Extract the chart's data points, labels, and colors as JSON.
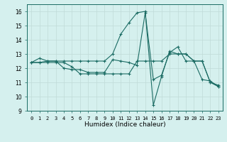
{
  "xlabel": "Humidex (Indice chaleur)",
  "ylabel": "",
  "background_color": "#d5f0ee",
  "grid_color": "#c0dbd8",
  "line_color": "#1a6b63",
  "xlim": [
    -0.5,
    23.5
  ],
  "ylim": [
    9,
    16.5
  ],
  "yticks": [
    9,
    10,
    11,
    12,
    13,
    14,
    15,
    16
  ],
  "xticks": [
    0,
    1,
    2,
    3,
    4,
    5,
    6,
    7,
    8,
    9,
    10,
    11,
    12,
    13,
    14,
    15,
    16,
    17,
    18,
    19,
    20,
    21,
    22,
    23
  ],
  "series": [
    [
      12.4,
      12.7,
      12.5,
      12.5,
      12.0,
      11.9,
      11.9,
      11.7,
      11.7,
      11.7,
      12.6,
      12.5,
      12.4,
      12.2,
      15.9,
      11.2,
      11.5,
      13.1,
      13.5,
      12.5,
      12.5,
      11.2,
      11.1,
      10.7
    ],
    [
      12.4,
      12.4,
      12.4,
      12.4,
      12.4,
      12.1,
      11.6,
      11.6,
      11.6,
      11.6,
      11.6,
      11.6,
      11.6,
      12.5,
      12.5,
      12.5,
      12.5,
      13.0,
      13.0,
      13.0,
      12.5,
      12.5,
      11.0,
      10.8
    ],
    [
      12.4,
      12.4,
      12.5,
      12.5,
      12.5,
      12.5,
      12.5,
      12.5,
      12.5,
      12.5,
      13.0,
      14.4,
      15.2,
      15.9,
      16.0,
      9.4,
      11.4,
      13.2,
      13.0,
      13.0,
      12.5,
      12.5,
      11.0,
      10.7
    ]
  ]
}
